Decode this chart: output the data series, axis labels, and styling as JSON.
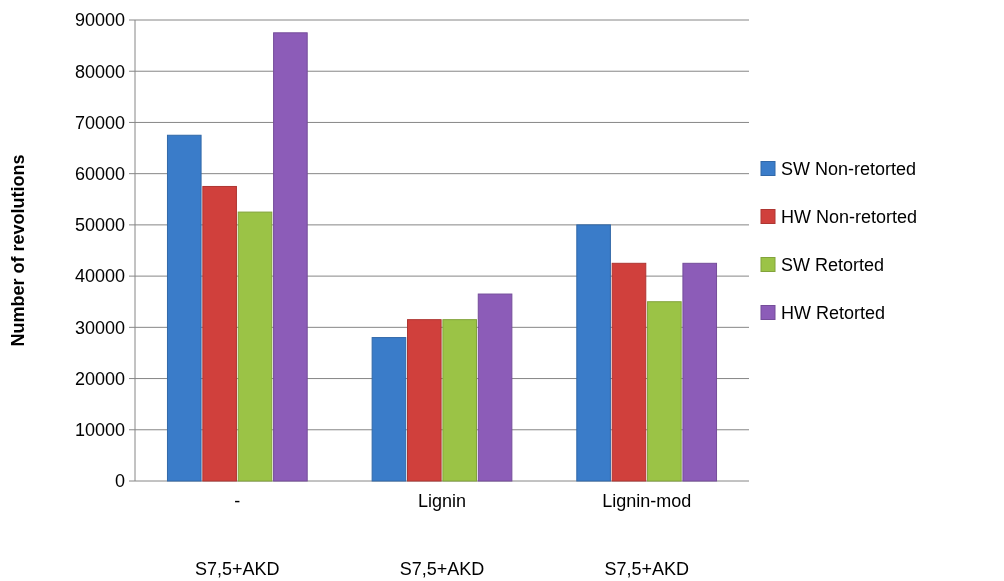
{
  "chart_data": {
    "type": "bar",
    "ylabel": "Number of revolutions",
    "categories": [
      "-\nS7,5+AKD",
      "Lignin\nS7,5+AKD",
      "Lignin-mod\nS7,5+AKD"
    ],
    "series": [
      {
        "name": "SW Non-retorted",
        "color": "#3a7cc9",
        "values": [
          67500,
          28000,
          50000
        ]
      },
      {
        "name": "HW Non-retorted",
        "color": "#d0403c",
        "values": [
          57500,
          31500,
          42500
        ]
      },
      {
        "name": "SW Retorted",
        "color": "#9bc346",
        "values": [
          52500,
          31500,
          35000
        ]
      },
      {
        "name": "HW Retorted",
        "color": "#8c5cb8",
        "values": [
          87500,
          36500,
          42500
        ]
      }
    ],
    "ylim": [
      0,
      90000
    ],
    "yticks": [
      0,
      10000,
      20000,
      30000,
      40000,
      50000,
      60000,
      70000,
      80000,
      90000
    ],
    "grid": "y",
    "legend": "right"
  }
}
